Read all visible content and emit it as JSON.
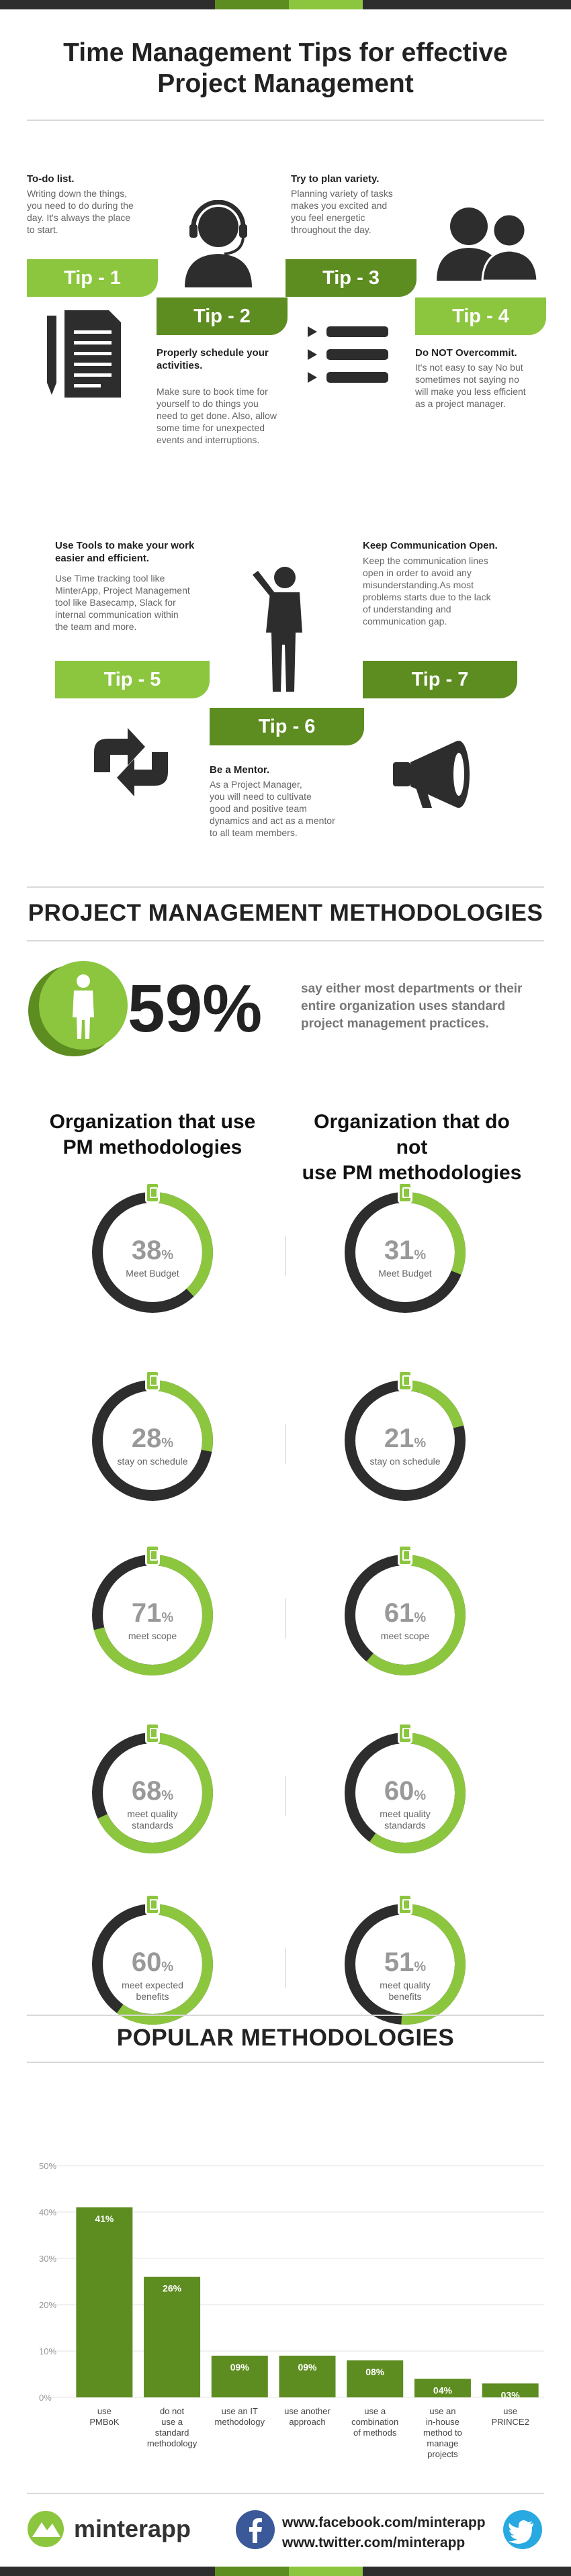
{
  "title": {
    "line1": "Time Management Tips for effective",
    "line2": "Project Management"
  },
  "tips": [
    {
      "tab": "Tip - 1",
      "heading": "To-do list.",
      "body": [
        "Writing down the things,",
        "you need to do during the",
        "day. It's always the place",
        "to start."
      ]
    },
    {
      "tab": "Tip - 2",
      "heading": "Properly schedule your activities.",
      "body": [
        "Make sure to book time for",
        "yourself to do things you",
        "need to get done. Also, allow",
        "some time for unexpected",
        "events and interruptions."
      ]
    },
    {
      "tab": "Tip - 3",
      "heading": "Try to plan variety.",
      "body": [
        "Planning variety of tasks",
        "makes you excited and",
        "you feel energetic",
        "throughout the day."
      ]
    },
    {
      "tab": "Tip - 4",
      "heading": "Do NOT Overcommit.",
      "body": [
        "It's not easy to say No but",
        "sometimes not saying no",
        "will make you less efficient",
        "as a project manager."
      ]
    },
    {
      "tab": "Tip - 5",
      "heading": "Use Tools to make your work easier and efficient.",
      "body": [
        "Use Time tracking tool like",
        "MinterApp, Project Management",
        "tool like Basecamp, Slack for",
        "internal communication within",
        "the team and more."
      ]
    },
    {
      "tab": "Tip - 6",
      "heading": "Be a Mentor.",
      "body": [
        "As a Project Manager,",
        "you will need to cultivate",
        "good and positive team",
        "dynamics and act as a mentor",
        "to all team members."
      ]
    },
    {
      "tab": "Tip - 7",
      "heading": "Keep Communication Open.",
      "body": [
        "Keep the communication lines",
        "open in order to avoid any",
        "misunderstanding.As most",
        "problems starts due to the lack",
        "of understanding and",
        "communication gap."
      ]
    }
  ],
  "methodologies": {
    "title": "PROJECT MANAGEMENT METHODOLOGIES",
    "stat_value": "59%",
    "stat_text": [
      "say either most departments or their",
      "entire organization uses standard",
      "project management practices."
    ],
    "left_title": [
      "Organization that use",
      "PM methodologies"
    ],
    "right_title": [
      "Organization that do not",
      "use PM methodologies"
    ],
    "left": [
      {
        "value": 38,
        "label": [
          "Meet Budget"
        ]
      },
      {
        "value": 28,
        "label": [
          "stay on schedule"
        ]
      },
      {
        "value": 71,
        "label": [
          "meet scope"
        ]
      },
      {
        "value": 68,
        "label": [
          "meet quality",
          "standards"
        ]
      },
      {
        "value": 60,
        "label": [
          "meet expected",
          "benefits"
        ]
      }
    ],
    "right": [
      {
        "value": 31,
        "label": [
          "Meet Budget"
        ]
      },
      {
        "value": 21,
        "label": [
          "stay on schedule"
        ]
      },
      {
        "value": 61,
        "label": [
          "meet scope"
        ]
      },
      {
        "value": 60,
        "label": [
          "meet quality",
          "standards"
        ]
      },
      {
        "value": 51,
        "label": [
          "meet quality",
          "benefits"
        ]
      }
    ]
  },
  "chart_data": {
    "type": "bar",
    "title": "POPULAR METHODOLOGIES",
    "ylim": [
      0,
      50
    ],
    "yticks": [
      "0%",
      "10%",
      "20%",
      "30%",
      "40%",
      "50%"
    ],
    "categories": [
      [
        "use",
        "PMBoK"
      ],
      [
        "do not",
        "use a",
        "standard",
        "methodology"
      ],
      [
        "use an IT",
        "methodology"
      ],
      [
        "use another",
        "approach"
      ],
      [
        "use a",
        "combination",
        "of methods"
      ],
      [
        "use an",
        "in-house",
        "method to",
        "manage",
        "projects"
      ],
      [
        "use",
        "PRINCE2"
      ]
    ],
    "values": [
      41,
      26,
      9,
      9,
      8,
      4,
      3
    ],
    "value_labels": [
      "41%",
      "26%",
      "09%",
      "09%",
      "08%",
      "04%",
      "03%"
    ]
  },
  "footer": {
    "brand": "minterapp",
    "facebook": "www.facebook.com/minterapp",
    "twitter": "www.twitter.com/minterapp"
  },
  "colors": {
    "green": "#8cc63f",
    "dark_green": "#5d8c20",
    "dark": "#2d2d2d",
    "grey_text": "#666666"
  }
}
